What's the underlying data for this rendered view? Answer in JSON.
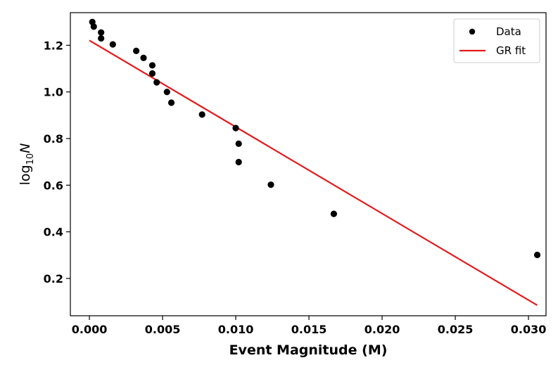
{
  "chart_data": {
    "type": "scatter",
    "xlabel": "Event Magnitude (M)",
    "ylabel": {
      "base": "log",
      "subscript": "10",
      "symbol": "N"
    },
    "xlim": [
      -0.0013,
      0.0312
    ],
    "ylim": [
      0.04,
      1.34
    ],
    "xticks": [
      0.0,
      0.005,
      0.01,
      0.015,
      0.02,
      0.025,
      0.03
    ],
    "xtick_labels": [
      "0.000",
      "0.005",
      "0.010",
      "0.015",
      "0.020",
      "0.025",
      "0.030"
    ],
    "yticks": [
      0.2,
      0.4,
      0.6,
      0.8,
      1.0,
      1.2
    ],
    "ytick_labels": [
      "0.2",
      "0.4",
      "0.6",
      "0.8",
      "1.0",
      "1.2"
    ],
    "grid": false,
    "legend_position": "top-right",
    "series": [
      {
        "name": "Data",
        "kind": "scatter",
        "color": "#000000",
        "points": [
          [
            0.0002,
            1.3
          ],
          [
            0.0003,
            1.28
          ],
          [
            0.0008,
            1.255
          ],
          [
            0.0008,
            1.23
          ],
          [
            0.0016,
            1.204
          ],
          [
            0.0032,
            1.176
          ],
          [
            0.0037,
            1.146
          ],
          [
            0.0043,
            1.114
          ],
          [
            0.0043,
            1.079
          ],
          [
            0.0046,
            1.041
          ],
          [
            0.0053,
            1.0
          ],
          [
            0.0056,
            0.954
          ],
          [
            0.0077,
            0.903
          ],
          [
            0.01,
            0.845
          ],
          [
            0.0102,
            0.778
          ],
          [
            0.0102,
            0.699
          ],
          [
            0.0124,
            0.602
          ],
          [
            0.0167,
            0.477
          ],
          [
            0.0306,
            0.301
          ]
        ]
      },
      {
        "name": "GR fit",
        "kind": "line",
        "color": "#e31a1c",
        "points": [
          [
            0.0,
            1.221
          ],
          [
            0.0306,
            0.085
          ]
        ]
      }
    ]
  }
}
